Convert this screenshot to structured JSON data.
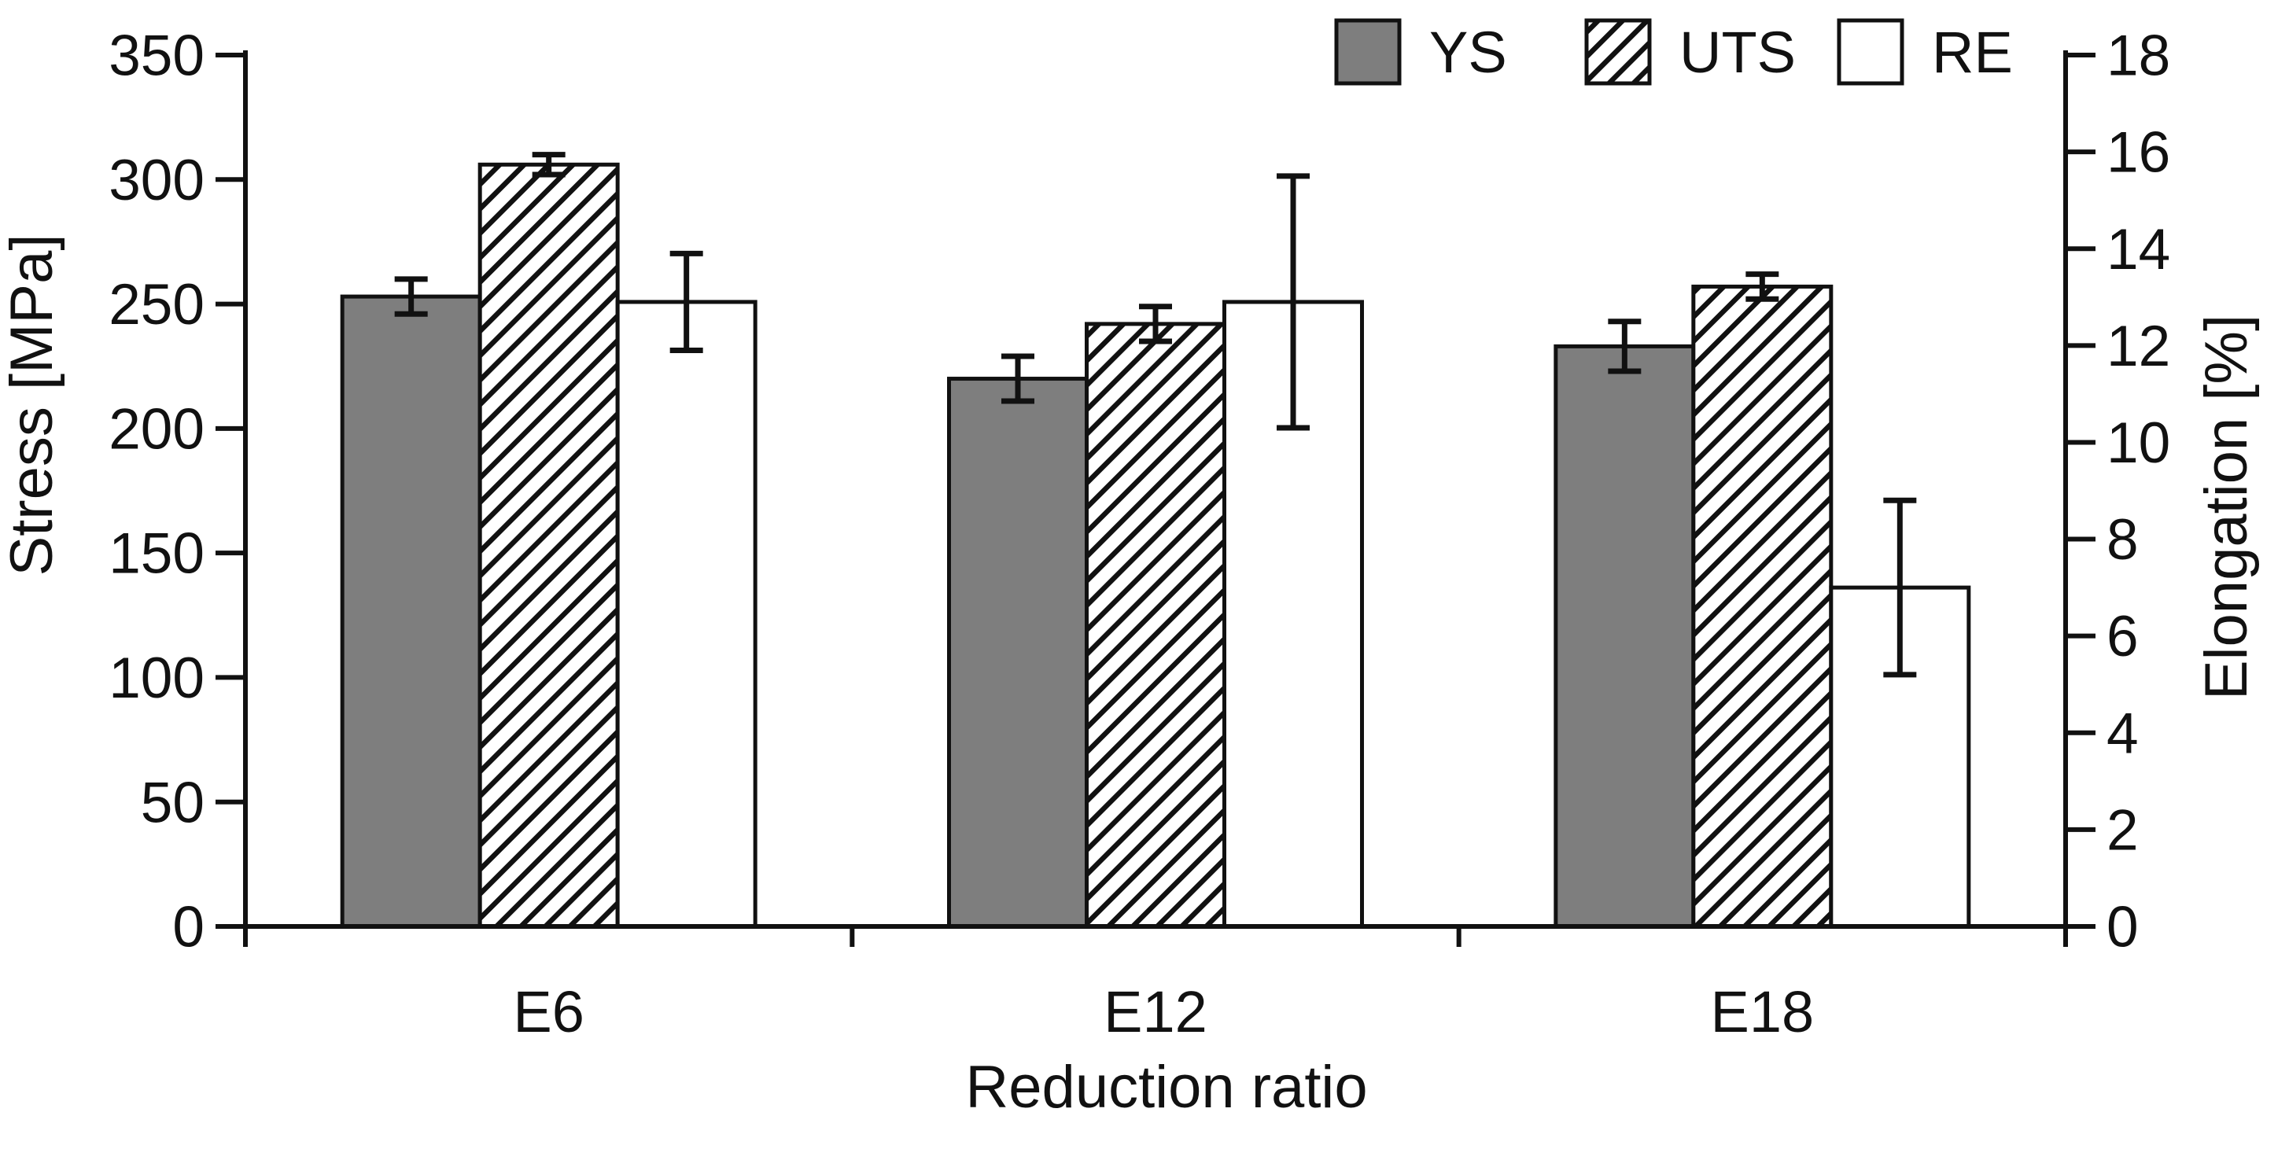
{
  "chart_data": {
    "type": "bar",
    "title": "",
    "categories": [
      "E6",
      "E12",
      "E18"
    ],
    "xlabel": "Reduction ratio",
    "grid": false,
    "legend_position": "top-right",
    "left_axis": {
      "label": "Stress [MPa]",
      "min": 0,
      "max": 350,
      "tick_step": 50,
      "ticks": [
        0,
        50,
        100,
        150,
        200,
        250,
        300,
        350
      ]
    },
    "right_axis": {
      "label": "Elongation [%]",
      "min": 0,
      "max": 18,
      "tick_step": 2,
      "ticks": [
        0,
        2,
        4,
        6,
        8,
        10,
        12,
        14,
        16,
        18
      ]
    },
    "series": [
      {
        "name": "YS",
        "axis": "left",
        "style": "solid-gray",
        "values": [
          253,
          220,
          233
        ],
        "errors": [
          7,
          9,
          10
        ]
      },
      {
        "name": "UTS",
        "axis": "left",
        "style": "hatched",
        "values": [
          306,
          242,
          257
        ],
        "errors": [
          4,
          7,
          5
        ]
      },
      {
        "name": "RE",
        "axis": "right",
        "style": "white",
        "values": [
          12.9,
          12.9,
          7.0
        ],
        "errors": [
          1.0,
          2.6,
          1.8
        ]
      }
    ]
  },
  "colors": {
    "bar_gray": "#7e7e7e",
    "bar_white": "#ffffff",
    "ink": "#111111",
    "background": "#ffffff"
  }
}
